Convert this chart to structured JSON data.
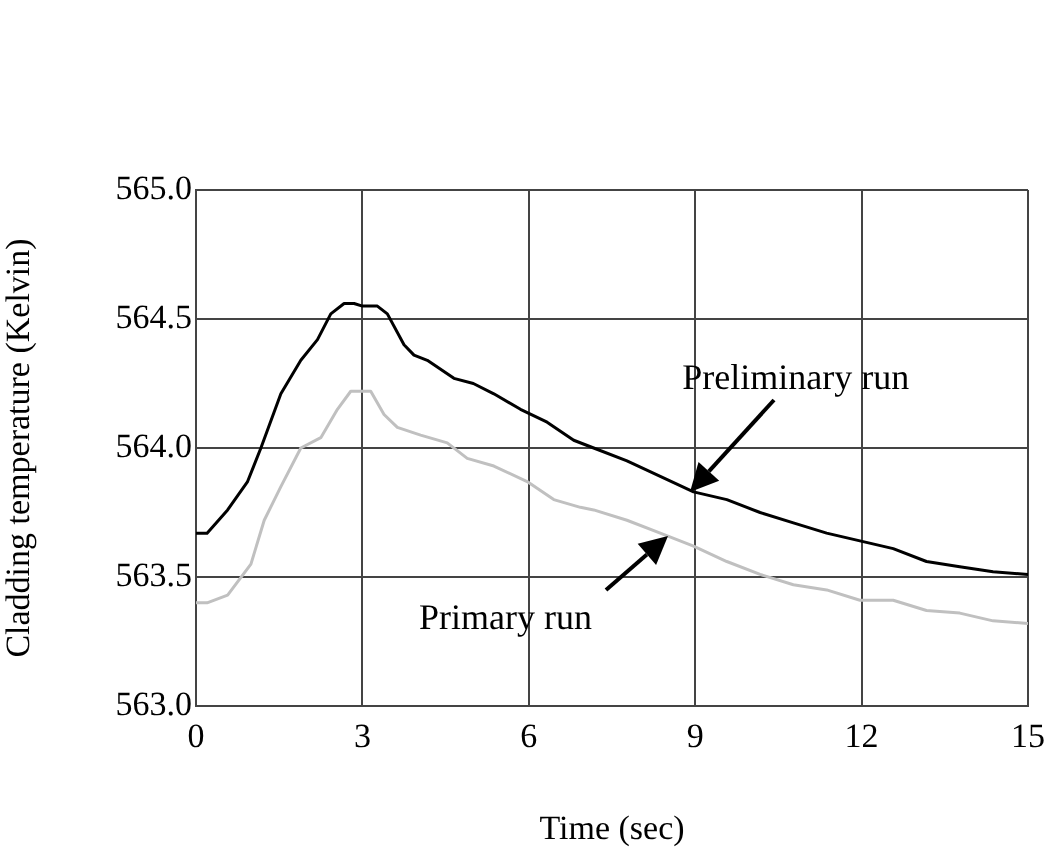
{
  "chart_data": {
    "type": "line",
    "xlabel": "Time (sec)",
    "ylabel": "Cladding temperature (Kelvin)",
    "xlim": [
      0,
      15
    ],
    "xticks": [
      0,
      3,
      6,
      9,
      12,
      15
    ],
    "ylim": [
      563,
      565
    ],
    "yticks": [
      {
        "value": 563,
        "label": "563.0"
      },
      {
        "value": 563.5,
        "label": "563.5"
      },
      {
        "value": 564,
        "label": "564.0"
      },
      {
        "value": 564.5,
        "label": "564.5"
      },
      {
        "value": 565,
        "label": "565.0"
      }
    ],
    "grid": true,
    "legend": false,
    "annotations": [
      {
        "text": "Preliminary run",
        "x": 8.9,
        "y": 563.83
      },
      {
        "text": "Primary run",
        "x": 8.5,
        "y": 563.66
      }
    ],
    "marker": "none",
    "line_style": "solid",
    "series": [
      {
        "color": "#000000",
        "x": [
          0,
          0.2,
          0.57,
          0.93,
          1.17,
          1.53,
          1.89,
          2.19,
          2.43,
          2.67,
          2.85,
          3.0,
          3.27,
          3.45,
          3.75,
          3.93,
          4.17,
          4.65,
          5.0,
          5.37,
          5.85,
          6.33,
          6.81,
          7.17,
          7.77,
          8.37,
          8.97,
          9.57,
          10.17,
          10.77,
          11.37,
          11.97,
          12.57,
          13.17,
          13.77,
          14.37,
          15
        ],
        "values": [
          563.67,
          563.67,
          563.76,
          563.87,
          564.0,
          564.21,
          564.34,
          564.42,
          564.52,
          564.56,
          564.56,
          564.55,
          564.55,
          564.52,
          564.4,
          564.36,
          564.34,
          564.27,
          564.25,
          564.21,
          564.15,
          564.1,
          564.03,
          564.0,
          563.95,
          563.89,
          563.83,
          563.8,
          563.75,
          563.71,
          563.67,
          563.64,
          563.61,
          563.56,
          563.54,
          563.52,
          563.51
        ]
      },
      {
        "color": "#c0c0c0",
        "x": [
          0,
          0.2,
          0.57,
          0.99,
          1.23,
          1.53,
          1.89,
          2.25,
          2.55,
          2.79,
          3.15,
          3.39,
          3.63,
          4.05,
          4.53,
          4.89,
          5.37,
          5.97,
          6.45,
          6.93,
          7.17,
          7.77,
          8.37,
          8.97,
          9.57,
          10.17,
          10.77,
          11.37,
          11.97,
          12.57,
          13.17,
          13.77,
          14.37,
          15
        ],
        "values": [
          563.4,
          563.4,
          563.43,
          563.55,
          563.72,
          563.85,
          564.0,
          564.04,
          564.15,
          564.22,
          564.22,
          564.13,
          564.08,
          564.05,
          564.02,
          563.96,
          563.93,
          563.87,
          563.8,
          563.77,
          563.76,
          563.72,
          563.67,
          563.62,
          563.56,
          563.51,
          563.47,
          563.45,
          563.41,
          563.41,
          563.37,
          563.36,
          563.33,
          563.32
        ]
      }
    ]
  }
}
